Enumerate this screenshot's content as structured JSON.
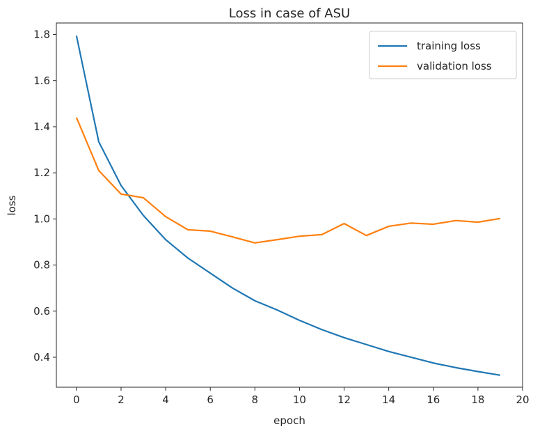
{
  "chart_data": {
    "type": "line",
    "title": "Loss in case of ASU",
    "xlabel": "epoch",
    "ylabel": "loss",
    "xlim": [
      -0.9,
      20
    ],
    "ylim": [
      0.27,
      1.85
    ],
    "xticks": [
      "0",
      "2",
      "4",
      "6",
      "8",
      "10",
      "12",
      "14",
      "16",
      "18",
      "20"
    ],
    "yticks": [
      "0.4",
      "0.6",
      "0.8",
      "1.0",
      "1.2",
      "1.4",
      "1.6",
      "1.8"
    ],
    "grid": false,
    "legend_position": "top-right",
    "x": [
      0,
      1,
      2,
      3,
      4,
      5,
      6,
      7,
      8,
      9,
      10,
      11,
      12,
      13,
      14,
      15,
      16,
      17,
      18,
      19
    ],
    "series": [
      {
        "name": "training loss",
        "color": "#1f77b4",
        "values": [
          1.795,
          1.335,
          1.145,
          1.015,
          0.91,
          0.83,
          0.765,
          0.7,
          0.645,
          0.605,
          0.56,
          0.52,
          0.485,
          0.455,
          0.425,
          0.4,
          0.375,
          0.355,
          0.338,
          0.322
        ]
      },
      {
        "name": "validation loss",
        "color": "#ff7f0e",
        "values": [
          1.44,
          1.21,
          1.108,
          1.092,
          1.01,
          0.953,
          0.947,
          0.922,
          0.896,
          0.91,
          0.925,
          0.932,
          0.98,
          0.928,
          0.968,
          0.982,
          0.977,
          0.993,
          0.986,
          1.002
        ]
      }
    ]
  }
}
